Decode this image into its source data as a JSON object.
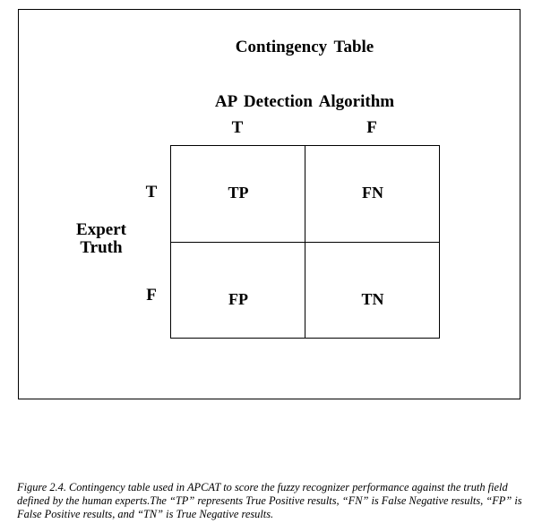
{
  "diagram": {
    "title": "Contingency Table",
    "column_axis_label": "AP Detection Algorithm",
    "column_headers": [
      "T",
      "F"
    ],
    "row_axis_label_line1": "Expert",
    "row_axis_label_line2": "Truth",
    "row_headers": [
      "T",
      "F"
    ],
    "cells": [
      [
        "TP",
        "FN"
      ],
      [
        "FP",
        "TN"
      ]
    ]
  },
  "caption": "Figure 2.4. Contingency table used in APCAT to score the fuzzy recognizer performance against the truth field defined by the human experts.The “TP” represents True Positive results, “FN” is False Negative results, “FP” is False Positive results, and “TN” is True Negative results."
}
